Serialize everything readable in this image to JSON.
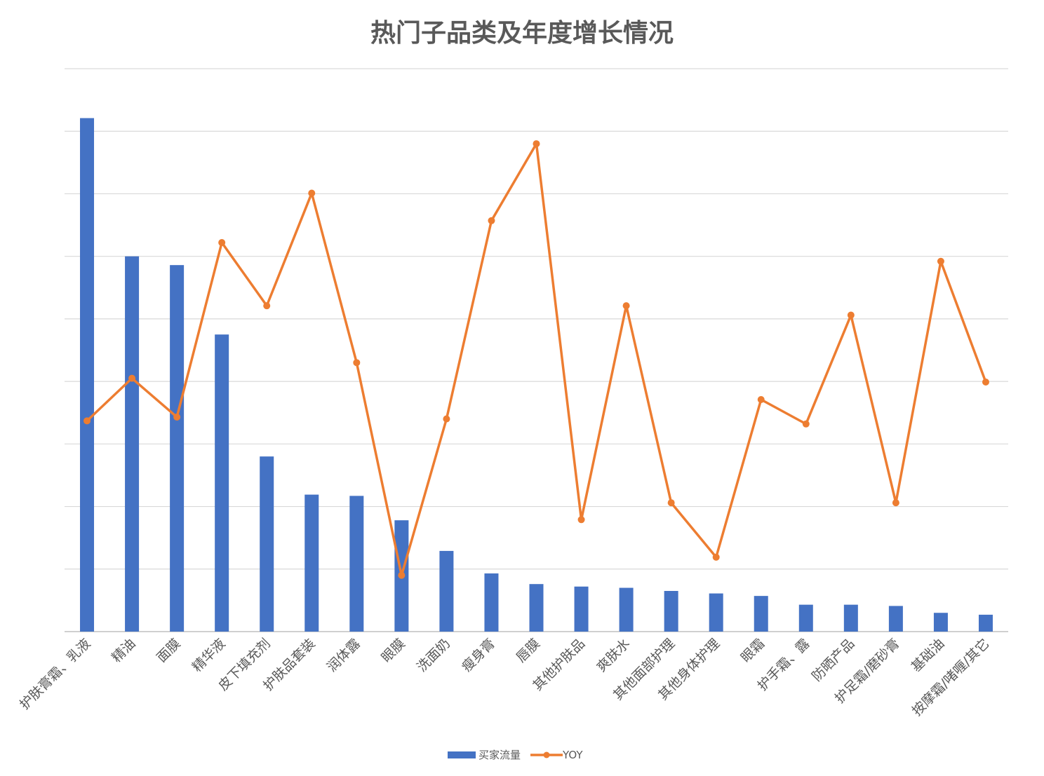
{
  "chart_data": {
    "type": "bar+line",
    "title": "热门子品类及年度增长情况",
    "xlabel": "",
    "ylabel": "",
    "grid": true,
    "legend_placement": "bottom",
    "y_tick_labels_shown": false,
    "ylim": [
      0,
      9
    ],
    "categories": [
      "护肤膏霜、乳液",
      "精油",
      "面膜",
      "精华液",
      "皮下填充剂",
      "护肤品套装",
      "润体露",
      "眼膜",
      "洗面奶",
      "瘦身膏",
      "唇膜",
      "其他护肤品",
      "爽肤水",
      "其他面部护理",
      "其他身体护理",
      "眼霜",
      "护手霜、露",
      "防晒产品",
      "护足霜/磨砂膏",
      "基础油",
      "按摩霜/啫喱/其它"
    ],
    "series": [
      {
        "name": "买家流量",
        "type": "bar",
        "color": "#4472C4",
        "values": [
          8.21,
          6.0,
          5.86,
          4.75,
          2.8,
          2.19,
          2.17,
          1.78,
          1.29,
          0.93,
          0.76,
          0.72,
          0.7,
          0.65,
          0.61,
          0.57,
          0.43,
          0.43,
          0.41,
          0.3,
          0.27
        ]
      },
      {
        "name": "YOY",
        "type": "line",
        "color": "#ED7D31",
        "values": [
          3.37,
          4.05,
          3.43,
          6.22,
          5.21,
          7.01,
          4.3,
          0.9,
          3.4,
          6.57,
          7.8,
          1.79,
          5.21,
          2.06,
          1.19,
          3.71,
          3.32,
          5.06,
          2.06,
          5.92,
          3.99
        ]
      }
    ]
  }
}
